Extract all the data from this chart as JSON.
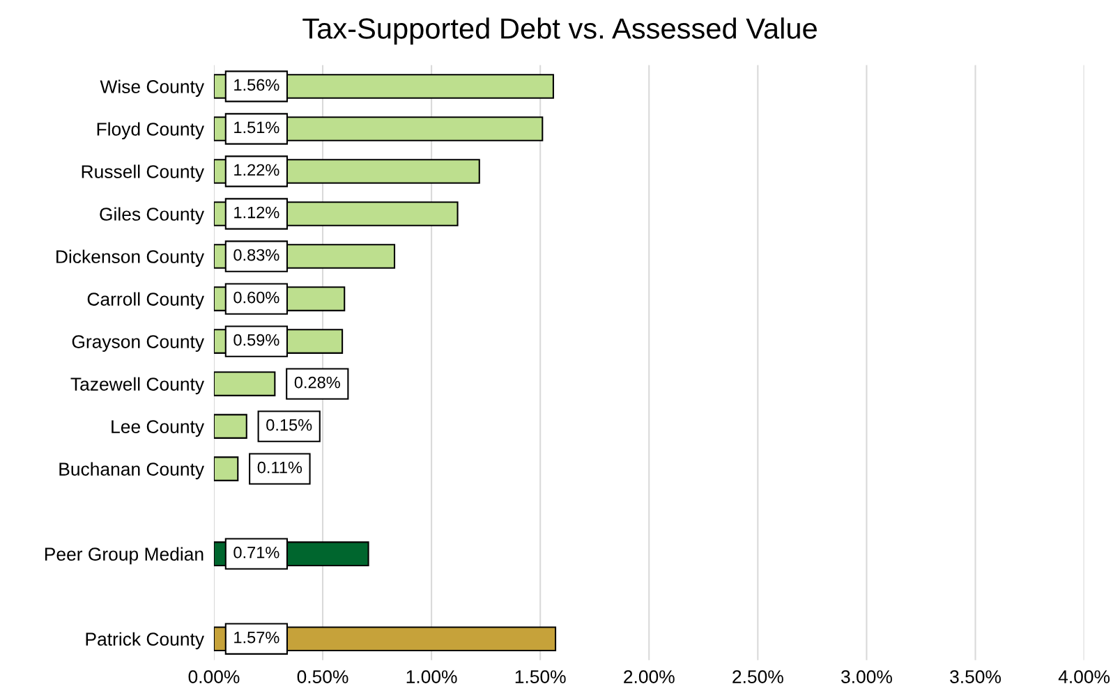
{
  "chart_data": {
    "type": "bar",
    "orientation": "horizontal",
    "title": "Tax-Supported Debt vs. Assessed Value",
    "categories": [
      "Wise County",
      "Floyd County",
      "Russell County",
      "Giles County",
      "Dickenson County",
      "Carroll County",
      "Grayson County",
      "Tazewell County",
      "Lee County",
      "Buchanan County",
      null,
      "Peer Group Median",
      null,
      "Patrick County"
    ],
    "values": [
      1.56,
      1.51,
      1.22,
      1.12,
      0.83,
      0.6,
      0.59,
      0.28,
      0.15,
      0.11,
      null,
      0.71,
      null,
      1.57
    ],
    "colors": [
      "#bddf8e",
      "#bddf8e",
      "#bddf8e",
      "#bddf8e",
      "#bddf8e",
      "#bddf8e",
      "#bddf8e",
      "#bddf8e",
      "#bddf8e",
      "#bddf8e",
      null,
      "#00662e",
      null,
      "#c6a23a"
    ],
    "value_labels": [
      "1.56%",
      "1.51%",
      "1.22%",
      "1.12%",
      "0.83%",
      "0.60%",
      "0.59%",
      "0.28%",
      "0.15%",
      "0.11%",
      null,
      "0.71%",
      null,
      "1.57%"
    ],
    "xlim": [
      0,
      4
    ],
    "xticks": [
      {
        "value": 0,
        "label": "0.00%"
      },
      {
        "value": 0.5,
        "label": "0.50%"
      },
      {
        "value": 1,
        "label": "1.00%"
      },
      {
        "value": 1.5,
        "label": "1.50%"
      },
      {
        "value": 2,
        "label": "2.00%"
      },
      {
        "value": 2.5,
        "label": "2.50%"
      },
      {
        "value": 3,
        "label": "3.00%"
      },
      {
        "value": 3.5,
        "label": "3.50%"
      },
      {
        "value": 4,
        "label": "4.00%"
      }
    ],
    "grid": "x",
    "legend": false
  }
}
